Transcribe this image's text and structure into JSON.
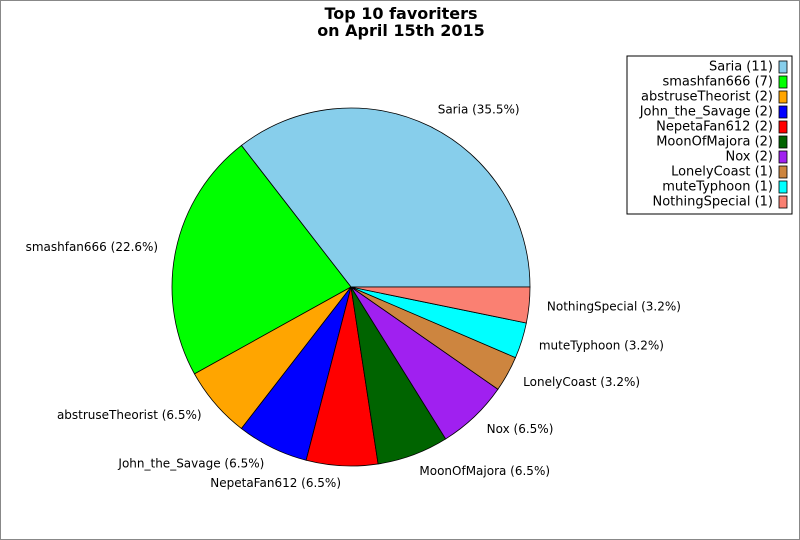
{
  "chart_data": {
    "type": "pie",
    "title": [
      "Top 10 favoriters",
      "on April 15th 2015"
    ],
    "legend_position": "top-right",
    "start_angle_deg": 0,
    "direction": "counterclockwise",
    "slices": [
      {
        "name": "Saria",
        "value": 11,
        "percent_label": "Saria (35.5%)",
        "legend_label": "Saria (11)",
        "color": "#87CEEB"
      },
      {
        "name": "smashfan666",
        "value": 7,
        "percent_label": "smashfan666 (22.6%)",
        "legend_label": "smashfan666 (7)",
        "color": "#00FF00"
      },
      {
        "name": "abstruseTheorist",
        "value": 2,
        "percent_label": "abstruseTheorist (6.5%)",
        "legend_label": "abstruseTheorist (2)",
        "color": "#FFA500"
      },
      {
        "name": "John_the_Savage",
        "value": 2,
        "percent_label": "John_the_Savage (6.5%)",
        "legend_label": "John_the_Savage (2)",
        "color": "#0000FF"
      },
      {
        "name": "NepetaFan612",
        "value": 2,
        "percent_label": "NepetaFan612 (6.5%)",
        "legend_label": "NepetaFan612 (2)",
        "color": "#FF0000"
      },
      {
        "name": "MoonOfMajora",
        "value": 2,
        "percent_label": "MoonOfMajora (6.5%)",
        "legend_label": "MoonOfMajora (2)",
        "color": "#006400"
      },
      {
        "name": "Nox",
        "value": 2,
        "percent_label": "Nox (6.5%)",
        "legend_label": "Nox (2)",
        "color": "#A020F0"
      },
      {
        "name": "LonelyCoast",
        "value": 1,
        "percent_label": "LonelyCoast (3.2%)",
        "legend_label": "LonelyCoast (1)",
        "color": "#CD853F"
      },
      {
        "name": "muteTyphoon",
        "value": 1,
        "percent_label": "muteTyphoon (3.2%)",
        "legend_label": "muteTyphoon (1)",
        "color": "#00FFFF"
      },
      {
        "name": "NothingSpecial",
        "value": 1,
        "percent_label": "NothingSpecial (3.2%)",
        "legend_label": "NothingSpecial (1)",
        "color": "#FA8072"
      }
    ]
  }
}
